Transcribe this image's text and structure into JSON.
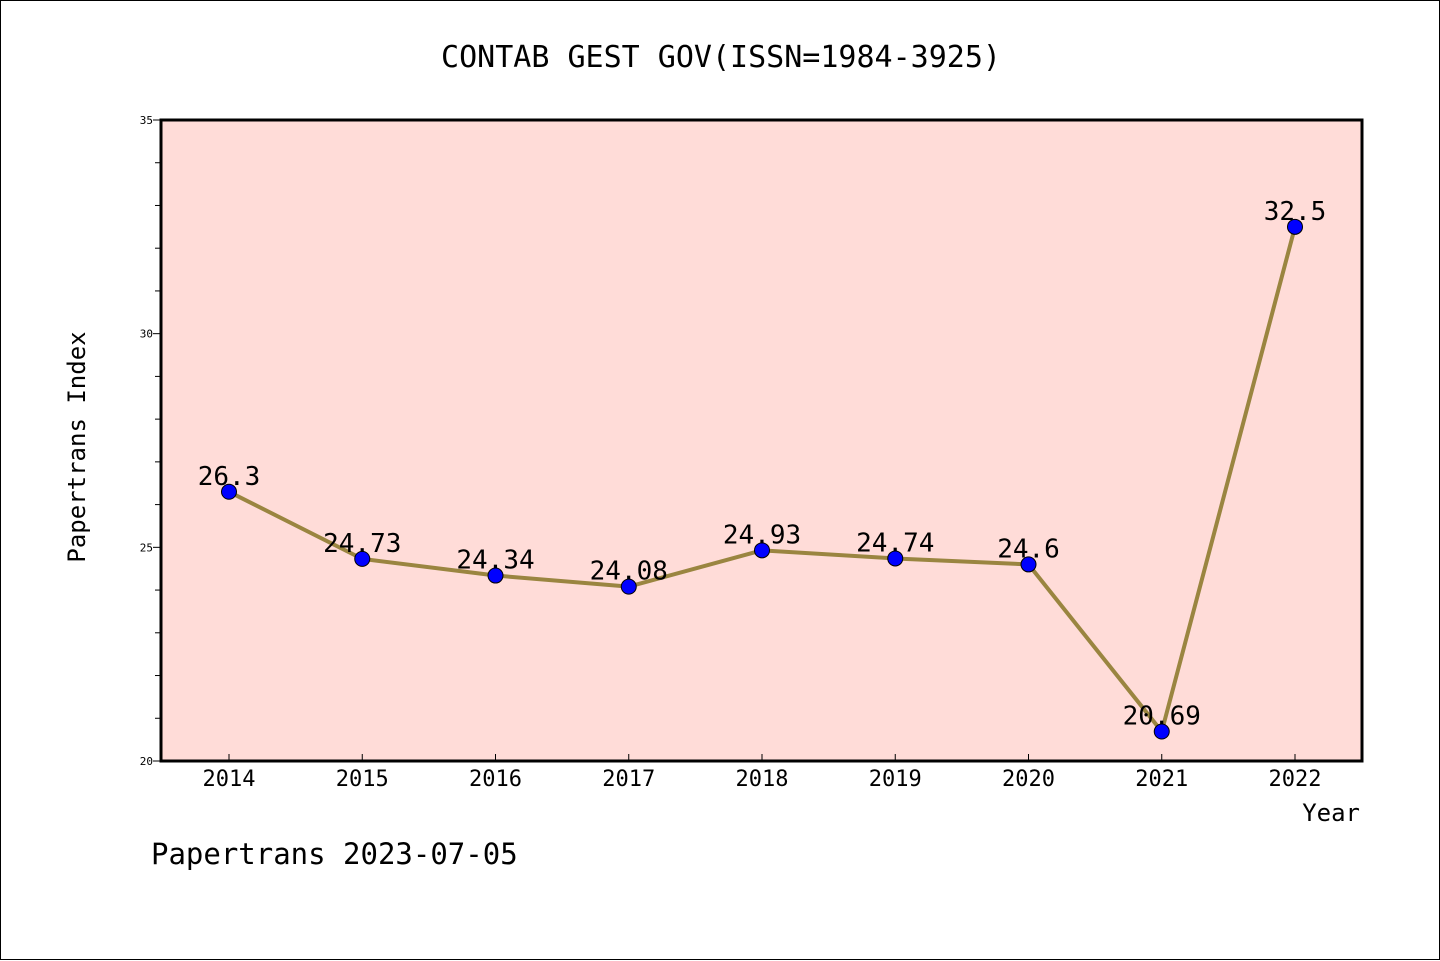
{
  "chart_data": {
    "type": "line",
    "title": "CONTAB GEST GOV(ISSN=1984-3925)",
    "xlabel": "Year",
    "ylabel": "Papertrans Index",
    "categories": [
      "2014",
      "2015",
      "2016",
      "2017",
      "2018",
      "2019",
      "2020",
      "2021",
      "2022"
    ],
    "series": [
      {
        "values": [
          26.3,
          24.73,
          24.34,
          24.08,
          24.93,
          24.74,
          24.6,
          20.69,
          32.5
        ],
        "labels": [
          "26.3",
          "24.73",
          "24.34",
          "24.08",
          "24.93",
          "24.74",
          "24.6",
          "20.69",
          "32.5"
        ],
        "line_color": "#9a8540",
        "marker_color": "#0000ff"
      }
    ],
    "ylim": [
      20,
      35
    ],
    "y_ticks": [
      "20",
      "25",
      "30",
      "35"
    ],
    "plot_background": "#ffdcd8",
    "grid": false,
    "footer": "Papertrans 2023-07-05"
  }
}
